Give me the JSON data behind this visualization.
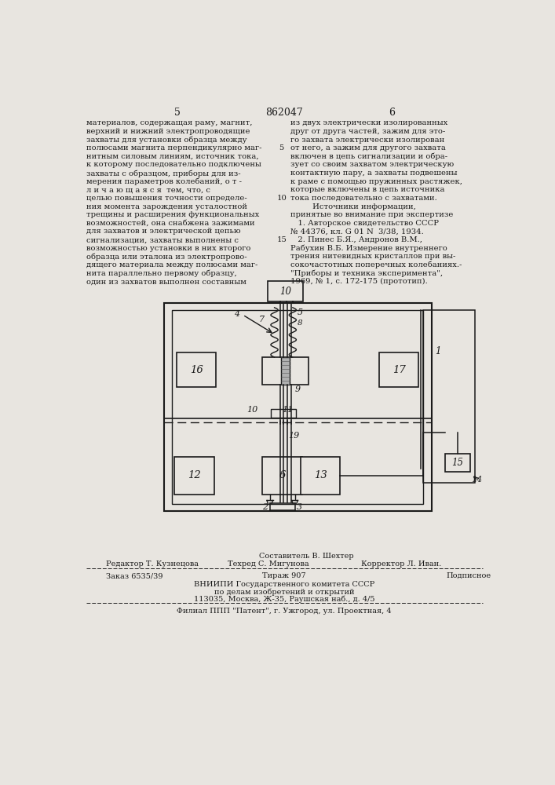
{
  "page_number_left": "5",
  "page_number_center": "862047",
  "page_number_right": "6",
  "bg_color": "#e8e5e0",
  "text_color": "#1a1a1a",
  "left_column_text": [
    "материалов, содержащая раму, магнит,",
    "верхний и нижний электропроводящие",
    "захваты для установки образца между",
    "полюсами магнита перпендикулярно маг-",
    "нитным силовым линиям, источник тока,",
    "к которому последовательно подключены",
    "захваты с образцом, приборы для из-",
    "мерения параметров колебаний, о т -",
    "л и ч а ю щ а я с я  тем, что, с",
    "целью повышения точности определе-",
    "ния момента зарождения усталостной",
    "трещины и расширения функциональных",
    "возможностей, она снабжена зажимами",
    "для захватов и электрической цепью",
    "сигнализации, захваты выполнены с",
    "возможностью установки в них второго",
    "образца или эталона из электропрово-",
    "дящего материала между полюсами маг-",
    "нита параллельно первому образцу,",
    "один из захватов выполнен составным"
  ],
  "right_column_text": [
    "из двух электрически изолированных",
    "друг от друга частей, зажим для это-",
    "го захвата электрически изолирован",
    "от него, а зажим для другого захвата",
    "включен в цепь сигнализации и обра-",
    "зует со своим захватом электрическую",
    "контактную пару, а захваты подвешены",
    "к раме с помощью пружинных растяжек,",
    "которые включены в цепь источника",
    "тока последовательно с захватами.",
    "         Источники информации,",
    "принятые во внимание при экспертизе",
    "   1. Авторское свидетельство СССР",
    "№ 44376, кл. G 01 N  3/38, 1934.",
    "   2. Пинес Б.Я., Андронов В.М.,",
    "Рабухин В.Б. Измерение внутреннего",
    "трения нитевидных кристаллов при вы-",
    "сокочастотных поперечных колебаниях.-",
    "\"Приборы и техника эксперимента\",",
    "1969, № 1, с. 172-175 (прототип)."
  ],
  "line_number_rows": [
    3,
    9,
    14
  ],
  "line_number_vals": [
    "5",
    "10",
    "15"
  ]
}
